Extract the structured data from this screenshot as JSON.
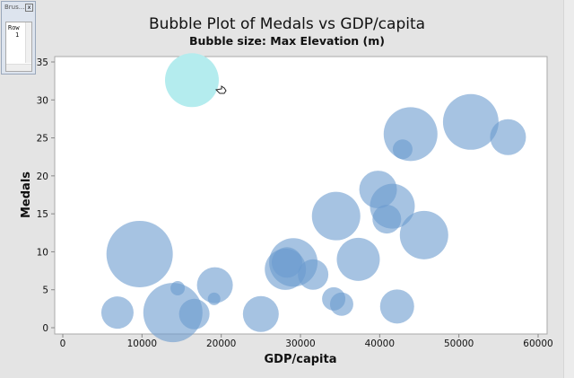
{
  "chart_data": {
    "type": "scatter",
    "title": "Bubble Plot of Medals vs GDP/capita",
    "subtitle": "Bubble size: Max Elevation (m)",
    "xlabel": "GDP/capita",
    "ylabel": "Medals",
    "xlim": [
      0,
      60000
    ],
    "ylim": [
      0,
      35
    ],
    "xticks": [
      "0",
      "10000",
      "20000",
      "30000",
      "40000",
      "50000",
      "60000"
    ],
    "yticks": [
      "0",
      "5",
      "10",
      "15",
      "20",
      "25",
      "30",
      "35"
    ],
    "grid": false,
    "bubble_color": "#6a9bcf",
    "brushed_color": "#b4ecee",
    "points": [
      {
        "x": 16300,
        "y": 32.6,
        "size": 30,
        "brushed": true
      },
      {
        "x": 9700,
        "y": 9.7,
        "size": 37
      },
      {
        "x": 6900,
        "y": 2.0,
        "size": 18
      },
      {
        "x": 14500,
        "y": 5.2,
        "size": 8
      },
      {
        "x": 13900,
        "y": 2.0,
        "size": 33
      },
      {
        "x": 16600,
        "y": 1.8,
        "size": 17
      },
      {
        "x": 19200,
        "y": 5.6,
        "size": 20
      },
      {
        "x": 19100,
        "y": 3.8,
        "size": 7
      },
      {
        "x": 25000,
        "y": 1.8,
        "size": 20
      },
      {
        "x": 28100,
        "y": 7.7,
        "size": 23
      },
      {
        "x": 29100,
        "y": 8.6,
        "size": 27
      },
      {
        "x": 28300,
        "y": 8.6,
        "size": 17
      },
      {
        "x": 31600,
        "y": 7.0,
        "size": 17
      },
      {
        "x": 34500,
        "y": 14.7,
        "size": 27
      },
      {
        "x": 34200,
        "y": 3.8,
        "size": 13
      },
      {
        "x": 35200,
        "y": 3.1,
        "size": 13
      },
      {
        "x": 37300,
        "y": 9.0,
        "size": 24
      },
      {
        "x": 39800,
        "y": 18.2,
        "size": 21
      },
      {
        "x": 41600,
        "y": 16.0,
        "size": 25
      },
      {
        "x": 40900,
        "y": 14.3,
        "size": 16
      },
      {
        "x": 42200,
        "y": 2.8,
        "size": 19
      },
      {
        "x": 43900,
        "y": 25.5,
        "size": 30
      },
      {
        "x": 42900,
        "y": 23.5,
        "size": 11
      },
      {
        "x": 45600,
        "y": 12.2,
        "size": 27
      },
      {
        "x": 51500,
        "y": 27.1,
        "size": 31
      },
      {
        "x": 56200,
        "y": 25.1,
        "size": 20
      }
    ]
  },
  "brush_window": {
    "title": "Brus...",
    "column": "Row",
    "rows": [
      "1"
    ],
    "close": "x"
  }
}
